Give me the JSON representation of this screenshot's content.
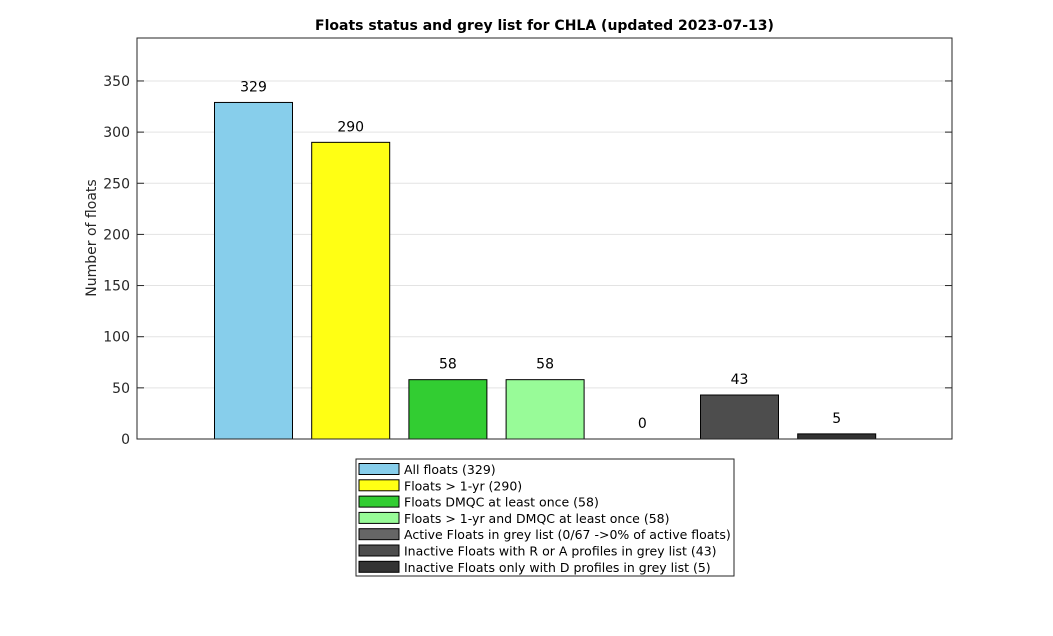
{
  "chart_data": {
    "type": "bar",
    "title": "Floats status and grey list for CHLA (updated 2023-07-13)",
    "xlabel": "",
    "ylabel": "Number of floats",
    "ylim": [
      0,
      392
    ],
    "yticks": [
      0,
      50,
      100,
      150,
      200,
      250,
      300,
      350
    ],
    "grid": true,
    "legend_position": "bottom",
    "series": [
      {
        "name": "All floats (329)",
        "value": 329,
        "label": "329",
        "color": "#87ceeb"
      },
      {
        "name": "Floats > 1-yr (290)",
        "value": 290,
        "label": "290",
        "color": "#ffff14"
      },
      {
        "name": "Floats DMQC at least once (58)",
        "value": 58,
        "label": "58",
        "color": "#32cd32"
      },
      {
        "name": "Floats > 1-yr and DMQC at least once (58)",
        "value": 58,
        "label": "58",
        "color": "#98fb98"
      },
      {
        "name": "Active Floats in grey list (0/67 ->0% of active floats)",
        "value": 0,
        "label": "0",
        "color": "#666666"
      },
      {
        "name": "Inactive Floats with R or A profiles in grey list (43)",
        "value": 43,
        "label": "43",
        "color": "#4d4d4d"
      },
      {
        "name": "Inactive Floats only with D profiles in grey list (5)",
        "value": 5,
        "label": "5",
        "color": "#333333"
      }
    ]
  }
}
